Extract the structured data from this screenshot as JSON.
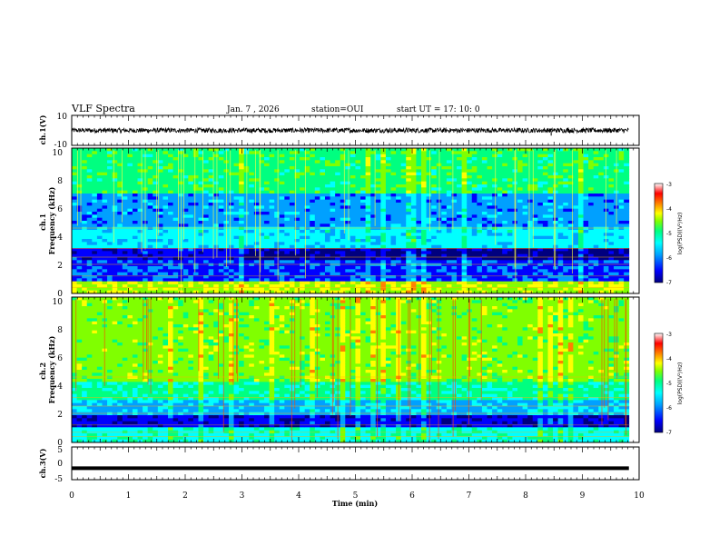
{
  "header": {
    "title": "VLF Spectra",
    "date": "Jan. 7 , 2026",
    "station": "station=OUI",
    "start": "start UT =  17: 10: 0"
  },
  "chart_data": [
    {
      "type": "line",
      "name": "ch1-waveform",
      "ylabel": "ch.1(V)",
      "ylim": [
        -10,
        10
      ],
      "yticks": [
        "10",
        "-10"
      ],
      "xlim": [
        0,
        9.82
      ],
      "approx_level": 0,
      "spikes": [
        {
          "x": 0.87,
          "value": -1.8
        },
        {
          "x": 8.45,
          "value": -3.5
        },
        {
          "x": 8.75,
          "value": 1.8
        }
      ]
    },
    {
      "type": "heatmap",
      "name": "ch1-spectrogram",
      "ylabel": "ch.1\nFrequency (kHz)",
      "ylim": [
        0,
        10
      ],
      "yticks": [
        "0",
        "2",
        "4",
        "6",
        "8",
        "10"
      ],
      "colorbar": {
        "label": "log(PSD)(V²/Hz)",
        "range": [
          -7,
          -3
        ],
        "ticks": [
          "-3",
          "-4",
          "-5",
          "-6",
          "-7"
        ]
      }
    },
    {
      "type": "heatmap",
      "name": "ch2-spectrogram",
      "ylabel": "ch.2\nFrequency (kHz)",
      "ylim": [
        0,
        10
      ],
      "yticks": [
        "0",
        "2",
        "4",
        "6",
        "8",
        "10"
      ],
      "colorbar": {
        "label": "log(PSD)(V²/Hz)",
        "range": [
          -7,
          -3
        ],
        "ticks": [
          "-3",
          "-4",
          "-5",
          "-6",
          "-7"
        ]
      }
    },
    {
      "type": "line",
      "name": "ch3-waveform",
      "ylabel": "ch.3(V)",
      "ylim": [
        -5,
        5
      ],
      "yticks": [
        "5",
        "0",
        "-5"
      ],
      "xlim": [
        0,
        9.82
      ],
      "approx_level": -1.5
    }
  ],
  "xaxis": {
    "label": "Time (min)",
    "range": [
      0,
      10
    ],
    "ticks": [
      "0",
      "1",
      "2",
      "3",
      "4",
      "5",
      "6",
      "7",
      "8",
      "9",
      "10"
    ]
  },
  "colors": {
    "scale": [
      "#00007f",
      "#0000ff",
      "#00a0ff",
      "#00ffff",
      "#00ff80",
      "#80ff00",
      "#ffff00",
      "#ff8000",
      "#ff0000",
      "#ffffff"
    ]
  }
}
